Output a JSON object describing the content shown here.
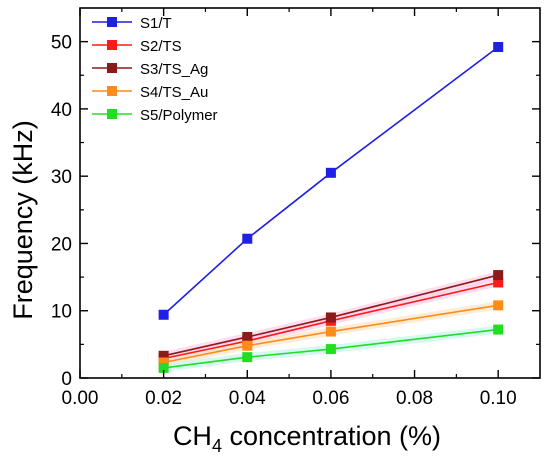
{
  "chart_data": {
    "type": "line",
    "xlabel": "CH4 concentration (%)",
    "xlabel_parts": {
      "main": "CH",
      "subscript": "4",
      "rest": " concentration (%)"
    },
    "ylabel": "Frequency (kHz)",
    "xlim": [
      0.0,
      0.11
    ],
    "ylim": [
      0,
      55
    ],
    "x_ticks": [
      0.0,
      0.02,
      0.04,
      0.06,
      0.08,
      0.1
    ],
    "x_tick_labels": [
      "0.00",
      "0.02",
      "0.04",
      "0.06",
      "0.08",
      "0.10"
    ],
    "y_ticks": [
      0,
      10,
      20,
      30,
      40,
      50
    ],
    "y_tick_labels": [
      "0",
      "10",
      "20",
      "30",
      "40",
      "50"
    ],
    "grid": false,
    "legend_position": "top-left",
    "x": [
      0.02,
      0.04,
      0.06,
      0.1
    ],
    "series": [
      {
        "name": "S1/T",
        "color": "#1f1fe6",
        "values": [
          9.4,
          20.7,
          30.5,
          49.2
        ]
      },
      {
        "name": "S2/TS",
        "color": "#ff1a1a",
        "values": [
          2.9,
          5.5,
          8.5,
          14.2
        ]
      },
      {
        "name": "S3/TS_Ag",
        "color": "#8b1a1a",
        "values": [
          3.3,
          6.1,
          9.0,
          15.3
        ]
      },
      {
        "name": "S4/TS_Au",
        "color": "#ff8c1a",
        "values": [
          2.3,
          4.8,
          6.9,
          10.8
        ]
      },
      {
        "name": "S5/Polymer",
        "color": "#22dd22",
        "values": [
          1.5,
          3.1,
          4.3,
          7.2
        ]
      }
    ]
  }
}
